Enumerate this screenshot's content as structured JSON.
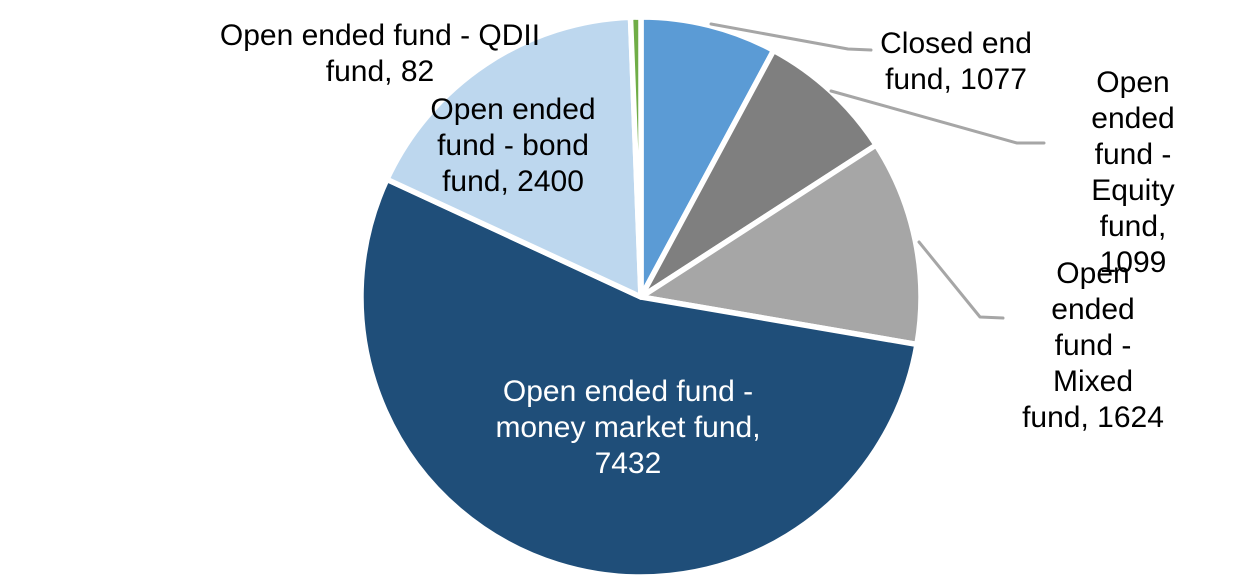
{
  "chart_data": {
    "type": "pie",
    "title": "",
    "total": 13714,
    "direction": "clockwise",
    "start_angle_deg": 0,
    "background": "#FFFFFF",
    "slice_border_color": "#FFFFFF",
    "leader_line_color": "#A6A6A6",
    "label_text_color": "#000000",
    "slices": [
      {
        "name": "Closed end fund",
        "value": 1077,
        "color": "#5B9BD5",
        "label": "Closed end\nfund, 1077",
        "label_placement": "outside",
        "label_color": "#000000"
      },
      {
        "name": "Open ended fund - Equity fund",
        "value": 1099,
        "color": "#7F7F7F",
        "label": "Open ended\nfund - Equity\nfund, 1099",
        "label_placement": "outside",
        "label_color": "#000000"
      },
      {
        "name": "Open ended fund - Mixed fund",
        "value": 1624,
        "color": "#A6A6A6",
        "label": "Open ended\nfund - Mixed\nfund, 1624",
        "label_placement": "outside",
        "label_color": "#000000"
      },
      {
        "name": "Open ended fund - money market fund",
        "value": 7432,
        "color": "#1F4E79",
        "label": "Open ended fund -\nmoney market fund,\n7432",
        "label_placement": "inside",
        "label_color": "#FFFFFF"
      },
      {
        "name": "Open ended fund - bond fund",
        "value": 2400,
        "color": "#BDD7EE",
        "label": "Open ended\nfund - bond\nfund, 2400",
        "label_placement": "inside",
        "label_color": "#000000"
      },
      {
        "name": "Open ended fund - QDII fund",
        "value": 82,
        "color": "#70AD47",
        "label": "Open ended fund - QDII\nfund, 82",
        "label_placement": "outside",
        "label_color": "#000000"
      }
    ]
  }
}
